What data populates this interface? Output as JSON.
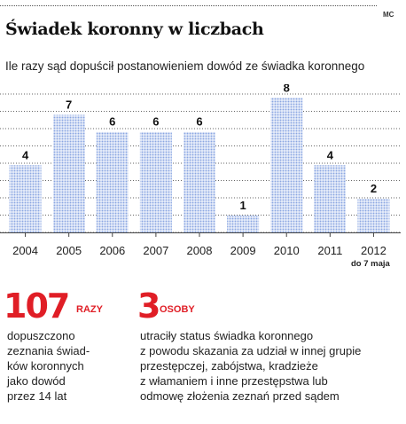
{
  "header": {
    "title": "Świadek koronny w liczbach",
    "subtitle": "Ile razy sąd dopuścił postanowieniem dowód ze świadka koronnego",
    "credit": "MC"
  },
  "chart_data": {
    "type": "bar",
    "title": "Świadek koronny w liczbach",
    "subtitle": "Ile razy sąd dopuścił postanowieniem dowód ze świadka koronnego",
    "categories": [
      "2004",
      "2005",
      "2006",
      "2007",
      "2008",
      "2009",
      "2010",
      "2011",
      "2012"
    ],
    "values": [
      4,
      7,
      6,
      6,
      6,
      1,
      8,
      4,
      2
    ],
    "annotations": [
      {
        "category": "2012",
        "text": "do 7 maja"
      }
    ],
    "ylim": [
      0,
      8.4
    ],
    "grid": true,
    "bar_color": "#9db4e8",
    "label_color": "#111111"
  },
  "stats": [
    {
      "number": "107",
      "unit": "RAZY",
      "lines": [
        "dopuszczono",
        "zeznania świad-",
        "ków koronnych",
        "jako dowód",
        "przez 14 lat"
      ]
    },
    {
      "number": "3",
      "unit": "OSOBY",
      "lines": [
        "utraciły status świadka koronnego",
        "z powodu skazania za udział w innej grupie",
        "przestępczej, zabójstwa, kradzieże",
        "z włamaniem i inne przestępstwa lub",
        "odmowę złożenia zeznań przed sądem"
      ]
    }
  ],
  "colors": {
    "accent": "#e01e26",
    "bar": "#9db4e8"
  }
}
